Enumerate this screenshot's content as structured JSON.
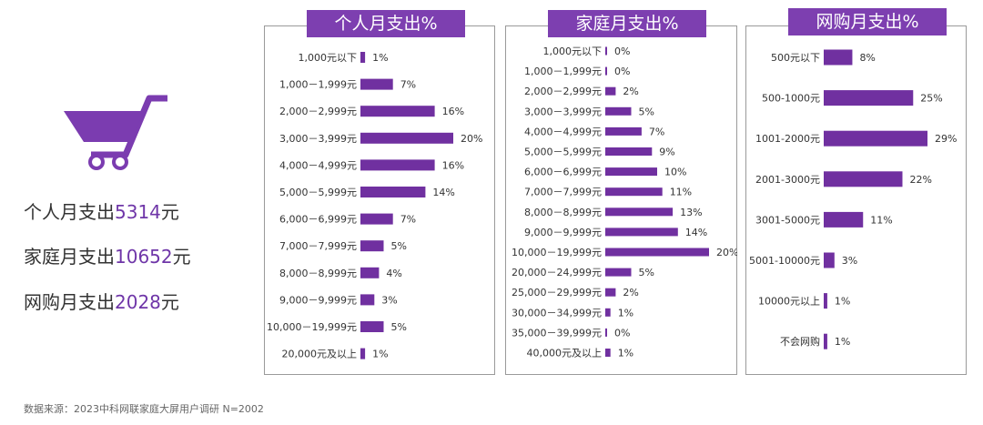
{
  "colors": {
    "accent": "#6f36a8",
    "title_bg": "#7d3fb0",
    "bar": "#7030a0"
  },
  "summary": {
    "personal": {
      "label": "个人月支出",
      "value": "5314",
      "unit": "元"
    },
    "family": {
      "label": "家庭月支出",
      "value": "10652",
      "unit": "元"
    },
    "online": {
      "label": "网购月支出",
      "value": "2028",
      "unit": "元"
    }
  },
  "source": "数据来源：2023中科网联家庭大屏用户调研 N=2002",
  "chart_data": [
    {
      "type": "bar",
      "orientation": "horizontal",
      "title": "个人月支出%",
      "categories": [
        "1,000元以下",
        "1,000－1,999元",
        "2,000－2,999元",
        "3,000－3,999元",
        "4,000－4,999元",
        "5,000－5,999元",
        "6,000－6,999元",
        "7,000－7,999元",
        "8,000－8,999元",
        "9,000－9,999元",
        "10,000－19,999元",
        "20,000元及以上"
      ],
      "values": [
        1,
        7,
        16,
        20,
        16,
        14,
        7,
        5,
        4,
        3,
        5,
        1
      ],
      "labels": [
        "1%",
        "7%",
        "16%",
        "20%",
        "16%",
        "14%",
        "7%",
        "5%",
        "4%",
        "3%",
        "5%",
        "1%"
      ],
      "xlim": [
        0,
        20
      ]
    },
    {
      "type": "bar",
      "orientation": "horizontal",
      "title": "家庭月支出%",
      "categories": [
        "1,000元以下",
        "1,000－1,999元",
        "2,000－2,999元",
        "3,000－3,999元",
        "4,000－4,999元",
        "5,000－5,999元",
        "6,000－6,999元",
        "7,000－7,999元",
        "8,000－8,999元",
        "9,000－9,999元",
        "10,000－19,999元",
        "20,000－24,999元",
        "25,000－29,999元",
        "30,000－34,999元",
        "35,000－39,999元",
        "40,000元及以上"
      ],
      "values": [
        0,
        0,
        2,
        5,
        7,
        9,
        10,
        11,
        13,
        14,
        20,
        5,
        2,
        1,
        0,
        1
      ],
      "labels": [
        "0%",
        "0%",
        "2%",
        "5%",
        "7%",
        "9%",
        "10%",
        "11%",
        "13%",
        "14%",
        "20%",
        "5%",
        "2%",
        "1%",
        "0%",
        "1%"
      ],
      "xlim": [
        0,
        20
      ]
    },
    {
      "type": "bar",
      "orientation": "horizontal",
      "title": "网购月支出%",
      "categories": [
        "500元以下",
        "500-1000元",
        "1001-2000元",
        "2001-3000元",
        "3001-5000元",
        "5001-10000元",
        "10000元以上",
        "不会网购"
      ],
      "values": [
        8,
        25,
        29,
        22,
        11,
        3,
        1,
        1
      ],
      "labels": [
        "8%",
        "25%",
        "29%",
        "22%",
        "11%",
        "3%",
        "1%",
        "1%"
      ],
      "xlim": [
        0,
        29
      ]
    }
  ]
}
